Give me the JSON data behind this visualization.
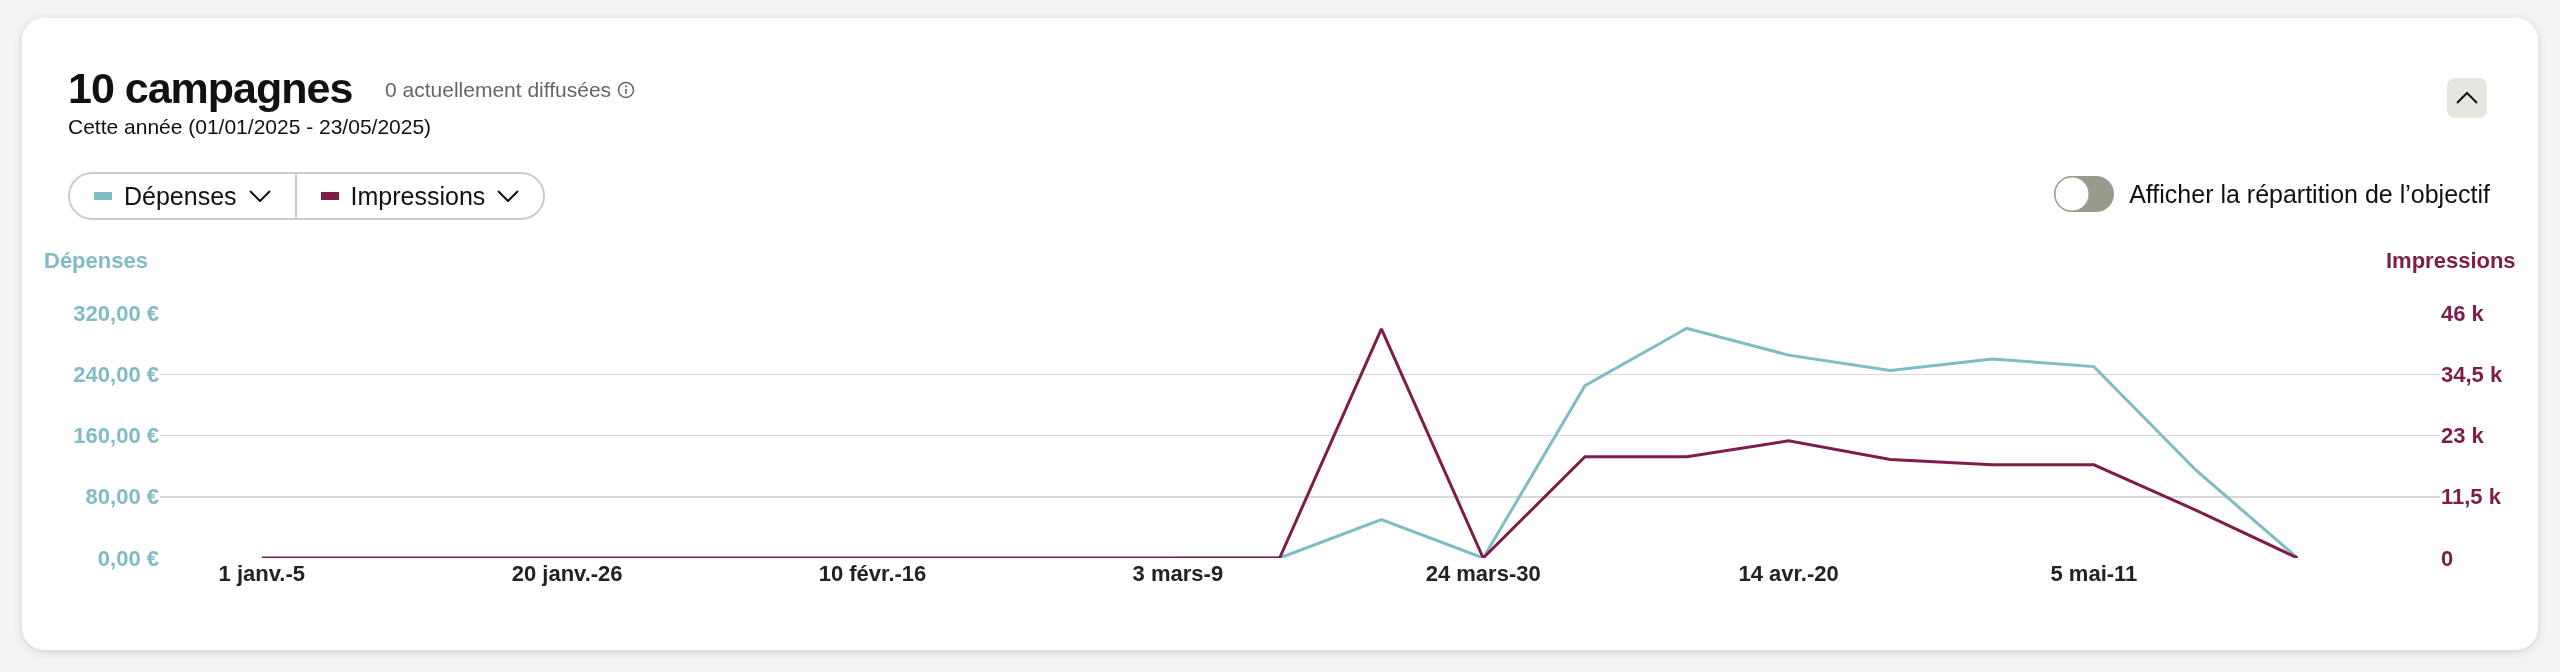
{
  "chart_data": {
    "type": "line",
    "title": "10 campagnes",
    "subtitle": "0 actuellement diffusées",
    "annotations": [
      "Cette année (01/01/2025 - 23/05/2025)",
      "Afficher la répartition de l’objectif"
    ],
    "ylabel": "Dépenses",
    "y2label": "Impressions",
    "categories": [
      "1 janv.-5",
      null,
      null,
      "20 janv.-26",
      null,
      null,
      "10 févr.-16",
      null,
      null,
      "3 mars-9",
      null,
      null,
      "24 mars-30",
      null,
      null,
      "14 avr.-20",
      null,
      null,
      "5 mai-11",
      null,
      null
    ],
    "series": [
      {
        "name": "Dépenses",
        "color": "#7fbcc4",
        "values": [
          null,
          null,
          null,
          null,
          null,
          null,
          null,
          null,
          null,
          0,
          0,
          50,
          0,
          225,
          300,
          265,
          245,
          260,
          250,
          115,
          0
        ]
      },
      {
        "name": "Impressions",
        "color": "#7d1d4a",
        "axis": "y2",
        "values": [
          0,
          0,
          0,
          0,
          0,
          0,
          0,
          0,
          0,
          0,
          0,
          43000,
          0,
          19000,
          19000,
          22000,
          18500,
          17500,
          17500,
          9000,
          0
        ]
      }
    ],
    "ylim": [
      0,
      320
    ],
    "yticks": [
      {
        "value": 0,
        "label": "0,00 €"
      },
      {
        "value": 80,
        "label": "80,00 €"
      },
      {
        "value": 160,
        "label": "160,00 €"
      },
      {
        "value": 240,
        "label": "240,00 €"
      },
      {
        "value": 320,
        "label": "320,00 €"
      }
    ],
    "y2lim": [
      0,
      46000
    ],
    "y2ticks": [
      {
        "value": 0,
        "label": "0"
      },
      {
        "value": 11500,
        "label": "11,5 k"
      },
      {
        "value": 23000,
        "label": "23 k"
      },
      {
        "value": 34500,
        "label": "34,5 k"
      },
      {
        "value": 46000,
        "label": "46 k"
      }
    ],
    "grid": "y",
    "legend": "top left",
    "marker": "none",
    "line_style": "solid"
  }
}
